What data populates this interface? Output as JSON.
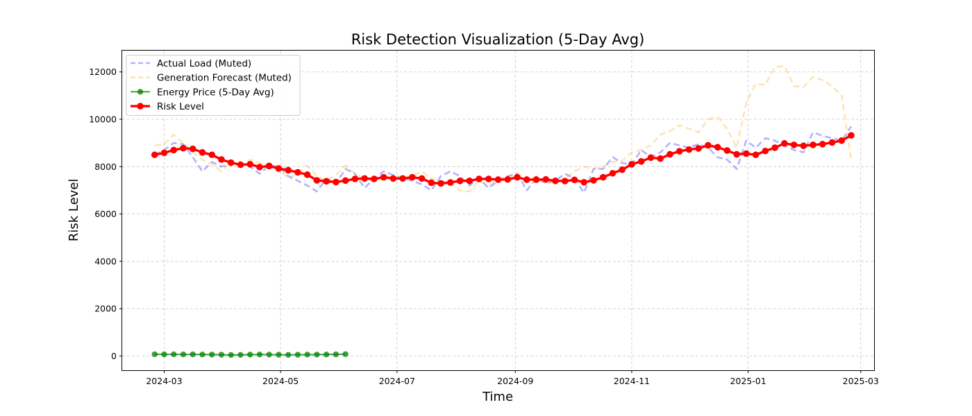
{
  "chart_data": {
    "type": "line",
    "title": "Risk Detection Visualization (5-Day Avg)",
    "xlabel": "Time",
    "ylabel": "Risk Level",
    "xlim": [
      "2024-02-08",
      "2025-03-08"
    ],
    "ylim": [
      -600,
      12900
    ],
    "x_ticks": [
      "2024-03",
      "2024-05",
      "2024-07",
      "2024-09",
      "2024-11",
      "2025-01",
      "2025-03"
    ],
    "y_ticks": [
      0,
      2000,
      4000,
      6000,
      8000,
      10000,
      12000
    ],
    "grid": true,
    "legend_position": "upper left",
    "series": [
      {
        "name": "Actual Load (Muted)",
        "color": "#0000ff",
        "style": "dashed",
        "x": [
          "2024-02-25",
          "2024-03-01",
          "2024-03-06",
          "2024-03-11",
          "2024-03-16",
          "2024-03-21",
          "2024-03-26",
          "2024-03-31",
          "2024-04-05",
          "2024-04-10",
          "2024-04-15",
          "2024-04-20",
          "2024-04-25",
          "2024-04-30",
          "2024-05-05",
          "2024-05-10",
          "2024-05-15",
          "2024-05-20",
          "2024-05-25",
          "2024-05-30",
          "2024-06-04",
          "2024-06-09",
          "2024-06-14",
          "2024-06-19",
          "2024-06-24",
          "2024-06-29",
          "2024-07-04",
          "2024-07-09",
          "2024-07-14",
          "2024-07-19",
          "2024-07-24",
          "2024-07-29",
          "2024-08-03",
          "2024-08-08",
          "2024-08-13",
          "2024-08-18",
          "2024-08-23",
          "2024-08-28",
          "2024-09-02",
          "2024-09-07",
          "2024-09-12",
          "2024-09-17",
          "2024-09-22",
          "2024-09-27",
          "2024-10-02",
          "2024-10-07",
          "2024-10-12",
          "2024-10-17",
          "2024-10-22",
          "2024-10-27",
          "2024-11-01",
          "2024-11-06",
          "2024-11-11",
          "2024-11-16",
          "2024-11-21",
          "2024-11-26",
          "2024-12-01",
          "2024-12-06",
          "2024-12-11",
          "2024-12-16",
          "2024-12-21",
          "2024-12-26",
          "2024-12-31",
          "2025-01-05",
          "2025-01-10",
          "2025-01-15",
          "2025-01-20",
          "2025-01-25",
          "2025-01-30",
          "2025-02-04",
          "2025-02-09",
          "2025-02-14",
          "2025-02-19",
          "2025-02-24"
        ],
        "y": [
          8500,
          8700,
          9000,
          8950,
          8400,
          7800,
          8200,
          8000,
          8100,
          8150,
          8000,
          7700,
          8050,
          8000,
          7600,
          7400,
          7200,
          6950,
          7500,
          7300,
          7900,
          7700,
          7100,
          7500,
          7800,
          7650,
          7500,
          7400,
          7250,
          7000,
          7600,
          7800,
          7600,
          7200,
          7500,
          7100,
          7400,
          7600,
          7700,
          7000,
          7500,
          7300,
          7400,
          7700,
          7500,
          6900,
          7900,
          7900,
          8400,
          8150,
          8100,
          8700,
          8400,
          8600,
          9000,
          8900,
          8800,
          8950,
          8800,
          8400,
          8300,
          7900,
          9100,
          8800,
          9200,
          9100,
          8900,
          8700,
          8600,
          9450,
          9300,
          9200,
          9100,
          9700
        ]
      },
      {
        "name": "Generation Forecast (Muted)",
        "color": "#ffa500",
        "style": "dashed",
        "x": [
          "2024-02-25",
          "2024-03-01",
          "2024-03-06",
          "2024-03-11",
          "2024-03-16",
          "2024-03-21",
          "2024-03-26",
          "2024-03-31",
          "2024-04-05",
          "2024-04-10",
          "2024-04-15",
          "2024-04-20",
          "2024-04-25",
          "2024-04-30",
          "2024-05-05",
          "2024-05-10",
          "2024-05-15",
          "2024-05-20",
          "2024-05-25",
          "2024-05-30",
          "2024-06-04",
          "2024-06-09",
          "2024-06-14",
          "2024-06-19",
          "2024-06-24",
          "2024-06-29",
          "2024-07-04",
          "2024-07-09",
          "2024-07-14",
          "2024-07-19",
          "2024-07-24",
          "2024-07-29",
          "2024-08-03",
          "2024-08-08",
          "2024-08-13",
          "2024-08-18",
          "2024-08-23",
          "2024-08-28",
          "2024-09-02",
          "2024-09-07",
          "2024-09-12",
          "2024-09-17",
          "2024-09-22",
          "2024-09-27",
          "2024-10-02",
          "2024-10-07",
          "2024-10-12",
          "2024-10-17",
          "2024-10-22",
          "2024-10-27",
          "2024-11-01",
          "2024-11-06",
          "2024-11-11",
          "2024-11-16",
          "2024-11-21",
          "2024-11-26",
          "2024-12-01",
          "2024-12-06",
          "2024-12-11",
          "2024-12-16",
          "2024-12-21",
          "2024-12-26",
          "2024-12-31",
          "2025-01-05",
          "2025-01-10",
          "2025-01-15",
          "2025-01-20",
          "2025-01-25",
          "2025-01-30",
          "2025-02-04",
          "2025-02-09",
          "2025-02-14",
          "2025-02-19",
          "2025-02-24"
        ],
        "y": [
          8900,
          8950,
          9350,
          9000,
          8600,
          8300,
          8100,
          7800,
          8200,
          8000,
          8300,
          8150,
          8100,
          7900,
          7500,
          7700,
          8050,
          7600,
          7400,
          7650,
          8050,
          7700,
          7500,
          7400,
          7600,
          7550,
          7550,
          7600,
          7800,
          7500,
          7400,
          7300,
          7000,
          6950,
          7400,
          7200,
          7500,
          7550,
          7700,
          7400,
          7600,
          7300,
          7350,
          7500,
          7800,
          8000,
          7900,
          8000,
          8200,
          8250,
          8600,
          8700,
          8900,
          9350,
          9500,
          9750,
          9600,
          9450,
          10000,
          10100,
          9600,
          8800,
          10700,
          11500,
          11450,
          12200,
          12250,
          11400,
          11350,
          11800,
          11650,
          11400,
          11000,
          8300
        ]
      },
      {
        "name": "Energy Price (5-Day Avg)",
        "color": "#008000",
        "style": "solid-marker",
        "x": [
          "2024-02-25",
          "2024-03-01",
          "2024-03-06",
          "2024-03-11",
          "2024-03-16",
          "2024-03-21",
          "2024-03-26",
          "2024-03-31",
          "2024-04-05",
          "2024-04-10",
          "2024-04-15",
          "2024-04-20",
          "2024-04-25",
          "2024-04-30",
          "2024-05-05",
          "2024-05-10",
          "2024-05-15",
          "2024-05-20",
          "2024-05-25",
          "2024-05-30",
          "2024-06-04"
        ],
        "y": [
          75,
          70,
          72,
          68,
          70,
          65,
          62,
          55,
          45,
          50,
          60,
          65,
          60,
          55,
          50,
          55,
          60,
          62,
          65,
          70,
          80
        ]
      },
      {
        "name": "Risk Level",
        "color": "#ff0000",
        "style": "thick-marker",
        "x": [
          "2024-02-25",
          "2024-03-01",
          "2024-03-06",
          "2024-03-11",
          "2024-03-16",
          "2024-03-21",
          "2024-03-26",
          "2024-03-31",
          "2024-04-05",
          "2024-04-10",
          "2024-04-15",
          "2024-04-20",
          "2024-04-25",
          "2024-04-30",
          "2024-05-05",
          "2024-05-10",
          "2024-05-15",
          "2024-05-20",
          "2024-05-25",
          "2024-05-30",
          "2024-06-04",
          "2024-06-09",
          "2024-06-14",
          "2024-06-19",
          "2024-06-24",
          "2024-06-29",
          "2024-07-04",
          "2024-07-09",
          "2024-07-14",
          "2024-07-19",
          "2024-07-24",
          "2024-07-29",
          "2024-08-03",
          "2024-08-08",
          "2024-08-13",
          "2024-08-18",
          "2024-08-23",
          "2024-08-28",
          "2024-09-02",
          "2024-09-07",
          "2024-09-12",
          "2024-09-17",
          "2024-09-22",
          "2024-09-27",
          "2024-10-02",
          "2024-10-07",
          "2024-10-12",
          "2024-10-17",
          "2024-10-22",
          "2024-10-27",
          "2024-11-01",
          "2024-11-06",
          "2024-11-11",
          "2024-11-16",
          "2024-11-21",
          "2024-11-26",
          "2024-12-01",
          "2024-12-06",
          "2024-12-11",
          "2024-12-16",
          "2024-12-21",
          "2024-12-26",
          "2024-12-31",
          "2025-01-05",
          "2025-01-10",
          "2025-01-15",
          "2025-01-20",
          "2025-01-25",
          "2025-01-30",
          "2025-02-04",
          "2025-02-09",
          "2025-02-14",
          "2025-02-19",
          "2025-02-24"
        ],
        "y": [
          8500,
          8580,
          8700,
          8780,
          8750,
          8600,
          8500,
          8300,
          8170,
          8080,
          8100,
          7980,
          8030,
          7920,
          7850,
          7760,
          7660,
          7420,
          7380,
          7350,
          7410,
          7480,
          7500,
          7480,
          7550,
          7500,
          7500,
          7550,
          7500,
          7320,
          7290,
          7330,
          7400,
          7400,
          7480,
          7480,
          7450,
          7460,
          7550,
          7450,
          7450,
          7460,
          7400,
          7390,
          7440,
          7340,
          7420,
          7550,
          7720,
          7870,
          8100,
          8220,
          8380,
          8340,
          8520,
          8650,
          8720,
          8770,
          8900,
          8820,
          8680,
          8520,
          8550,
          8500,
          8660,
          8800,
          8980,
          8920,
          8880,
          8920,
          8950,
          9020,
          9100,
          9320
        ]
      }
    ]
  }
}
